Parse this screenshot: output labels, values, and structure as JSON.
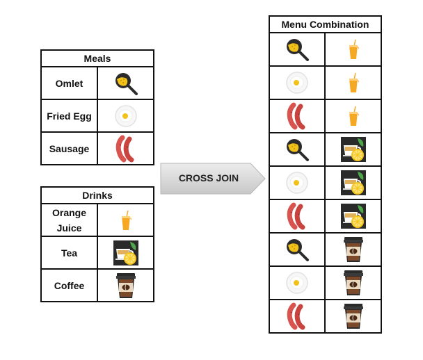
{
  "meals": {
    "title": "Meals",
    "rows": [
      {
        "label": "Omlet",
        "icon": "omelet-pan-icon"
      },
      {
        "label": "Fried Egg",
        "icon": "fried-egg-icon"
      },
      {
        "label": "Sausage",
        "icon": "sausage-icon"
      }
    ]
  },
  "drinks": {
    "title": "Drinks",
    "rows": [
      {
        "label": "Orange Juice",
        "icon": "orange-juice-icon"
      },
      {
        "label": "Tea",
        "icon": "tea-icon"
      },
      {
        "label": "Coffee",
        "icon": "coffee-cup-icon"
      }
    ]
  },
  "operation": {
    "label": "CROSS JOIN"
  },
  "menu_combination": {
    "title": "Menu Combination",
    "rows": [
      [
        "omelet-pan-icon",
        "orange-juice-icon"
      ],
      [
        "fried-egg-icon",
        "orange-juice-icon"
      ],
      [
        "sausage-icon",
        "orange-juice-icon"
      ],
      [
        "omelet-pan-icon",
        "tea-icon"
      ],
      [
        "fried-egg-icon",
        "tea-icon"
      ],
      [
        "sausage-icon",
        "tea-icon"
      ],
      [
        "omelet-pan-icon",
        "coffee-cup-icon"
      ],
      [
        "fried-egg-icon",
        "coffee-cup-icon"
      ],
      [
        "sausage-icon",
        "coffee-cup-icon"
      ]
    ]
  },
  "colors": {
    "border": "#111111",
    "arrow_fill": "#d6d6d6",
    "pan": "#2b2b2b",
    "egg_yolk": "#f2c21b",
    "sausage": "#d9534f",
    "juice": "#f7a823",
    "tea_bg": "#2a2a2a",
    "lemon": "#f5c518",
    "coffee": "#7a4a2a"
  }
}
